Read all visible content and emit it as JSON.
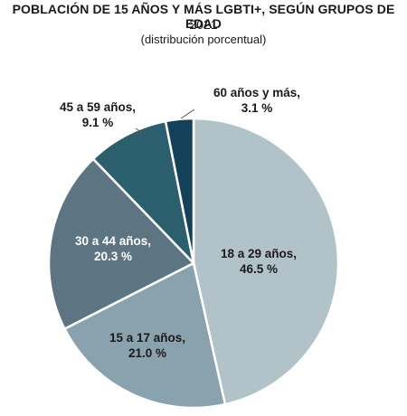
{
  "chart_data": {
    "type": "pie",
    "title": "POBLACIÓN DE 15 AÑOS Y MÁS LGBTI+, SEGÚN GRUPOS DE EDAD",
    "year": "2021",
    "subtitle": "(distribución porcentual)",
    "slices": [
      {
        "label": "18 a 29 años,",
        "value_label": "46.5 %",
        "value": 46.5,
        "color": "#b1c3c9",
        "text_color": "#1a1a1a"
      },
      {
        "label": "15 a 17 años,",
        "value_label": "21.0 %",
        "value": 21.0,
        "color": "#8aa2ad",
        "text_color": "#1a1a1a"
      },
      {
        "label": "30 a 44 años,",
        "value_label": "20.3 %",
        "value": 20.3,
        "color": "#5d7583",
        "text_color": "#ffffff"
      },
      {
        "label": "45 a 59 años,",
        "value_label": "9.1 %",
        "value": 9.1,
        "color": "#2c5f6e",
        "text_color": "#1a1a1a"
      },
      {
        "label": "60 años y más,",
        "value_label": "3.1 %",
        "value": 3.1,
        "color": "#14405a",
        "text_color": "#1a1a1a"
      }
    ]
  }
}
